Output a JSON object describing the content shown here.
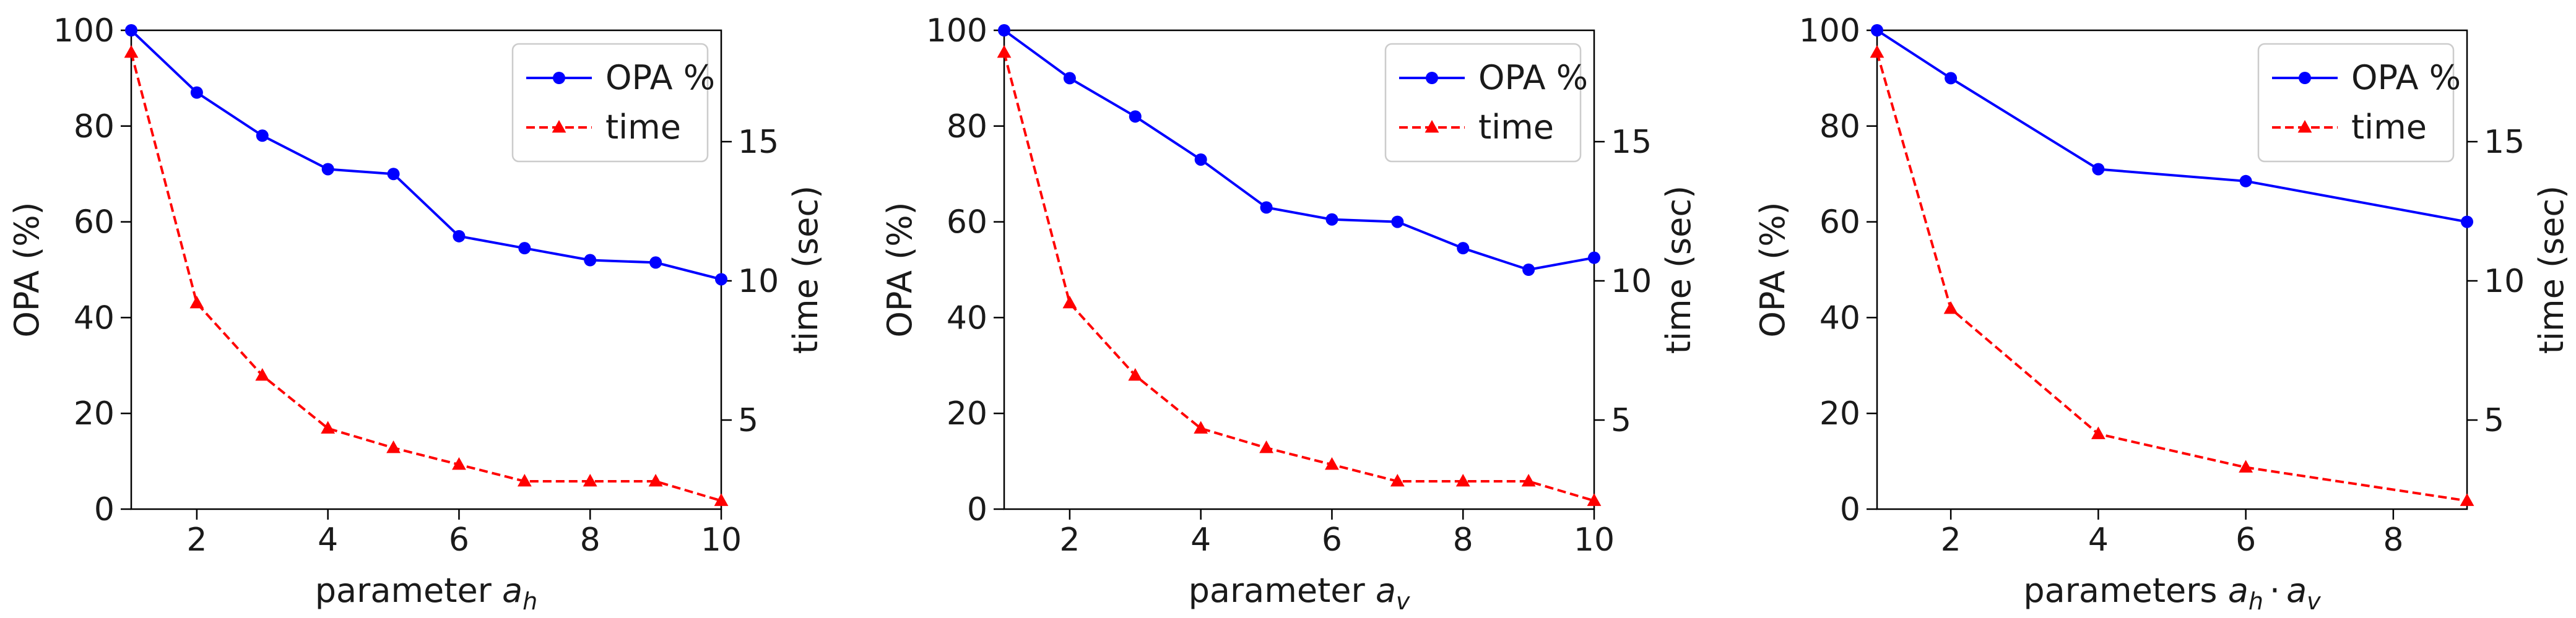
{
  "chart_data": [
    {
      "type": "line",
      "xlabel_prefix": "parameter ",
      "xlabel_math": [
        {
          "base": "a",
          "sub": "h"
        }
      ],
      "ylabel_left": "OPA (%)",
      "ylabel_right": "time (sec)",
      "xlim": [
        1,
        10
      ],
      "ylim_left": [
        0,
        100
      ],
      "ylim_right": [
        1.8,
        19
      ],
      "xticks": [
        2,
        4,
        6,
        8,
        10
      ],
      "yticks_left": [
        0,
        20,
        40,
        60,
        80,
        100
      ],
      "yticks_right": [
        5,
        10,
        15
      ],
      "legend": {
        "position": "top-right",
        "entries": [
          "OPA %",
          "time"
        ]
      },
      "series": [
        {
          "name": "OPA %",
          "axis": "left",
          "color": "#0000ff",
          "style": "solid",
          "marker": "circle",
          "x": [
            1,
            2,
            3,
            4,
            5,
            6,
            7,
            8,
            9,
            10
          ],
          "y": [
            100,
            87,
            78,
            71,
            70,
            57,
            54.5,
            52,
            51.5,
            48
          ]
        },
        {
          "name": "time",
          "axis": "right",
          "color": "#ff0000",
          "style": "dashed",
          "marker": "triangle",
          "x": [
            1,
            2,
            3,
            4,
            5,
            6,
            7,
            8,
            9,
            10
          ],
          "y": [
            18.2,
            9.2,
            6.6,
            4.7,
            4.0,
            3.4,
            2.8,
            2.8,
            2.8,
            2.1
          ]
        }
      ]
    },
    {
      "type": "line",
      "xlabel_prefix": "parameter ",
      "xlabel_math": [
        {
          "base": "a",
          "sub": "v"
        }
      ],
      "ylabel_left": "OPA (%)",
      "ylabel_right": "time (sec)",
      "xlim": [
        1,
        10
      ],
      "ylim_left": [
        0,
        100
      ],
      "ylim_right": [
        1.8,
        19
      ],
      "xticks": [
        2,
        4,
        6,
        8,
        10
      ],
      "yticks_left": [
        0,
        20,
        40,
        60,
        80,
        100
      ],
      "yticks_right": [
        5,
        10,
        15
      ],
      "legend": {
        "position": "top-right",
        "entries": [
          "OPA %",
          "time"
        ]
      },
      "series": [
        {
          "name": "OPA %",
          "axis": "left",
          "color": "#0000ff",
          "style": "solid",
          "marker": "circle",
          "x": [
            1,
            2,
            3,
            4,
            5,
            6,
            7,
            8,
            9,
            10
          ],
          "y": [
            100,
            90,
            82,
            73,
            63,
            60.5,
            60,
            54.5,
            50,
            52.5
          ]
        },
        {
          "name": "time",
          "axis": "right",
          "color": "#ff0000",
          "style": "dashed",
          "marker": "triangle",
          "x": [
            1,
            2,
            3,
            4,
            5,
            6,
            7,
            8,
            9,
            10
          ],
          "y": [
            18.2,
            9.2,
            6.6,
            4.7,
            4.0,
            3.4,
            2.8,
            2.8,
            2.8,
            2.1
          ]
        }
      ]
    },
    {
      "type": "line",
      "xlabel_prefix": "parameters ",
      "xlabel_math": [
        {
          "base": "a",
          "sub": "h"
        },
        {
          "base": "a",
          "sub": "v"
        }
      ],
      "ylabel_left": "OPA (%)",
      "ylabel_right": "time (sec)",
      "xlim": [
        1,
        9
      ],
      "ylim_left": [
        0,
        100
      ],
      "ylim_right": [
        1.8,
        19
      ],
      "xticks": [
        2,
        4,
        6,
        8
      ],
      "yticks_left": [
        0,
        20,
        40,
        60,
        80,
        100
      ],
      "yticks_right": [
        5,
        10,
        15
      ],
      "legend": {
        "position": "top-right",
        "entries": [
          "OPA %",
          "time"
        ]
      },
      "series": [
        {
          "name": "OPA %",
          "axis": "left",
          "color": "#0000ff",
          "style": "solid",
          "marker": "circle",
          "x": [
            1,
            2,
            4,
            6,
            9
          ],
          "y": [
            100,
            90,
            71,
            68.5,
            60
          ]
        },
        {
          "name": "time",
          "axis": "right",
          "color": "#ff0000",
          "style": "dashed",
          "marker": "triangle",
          "x": [
            1,
            2,
            4,
            6,
            9
          ],
          "y": [
            18.2,
            9.0,
            4.5,
            3.3,
            2.1
          ]
        }
      ]
    }
  ]
}
